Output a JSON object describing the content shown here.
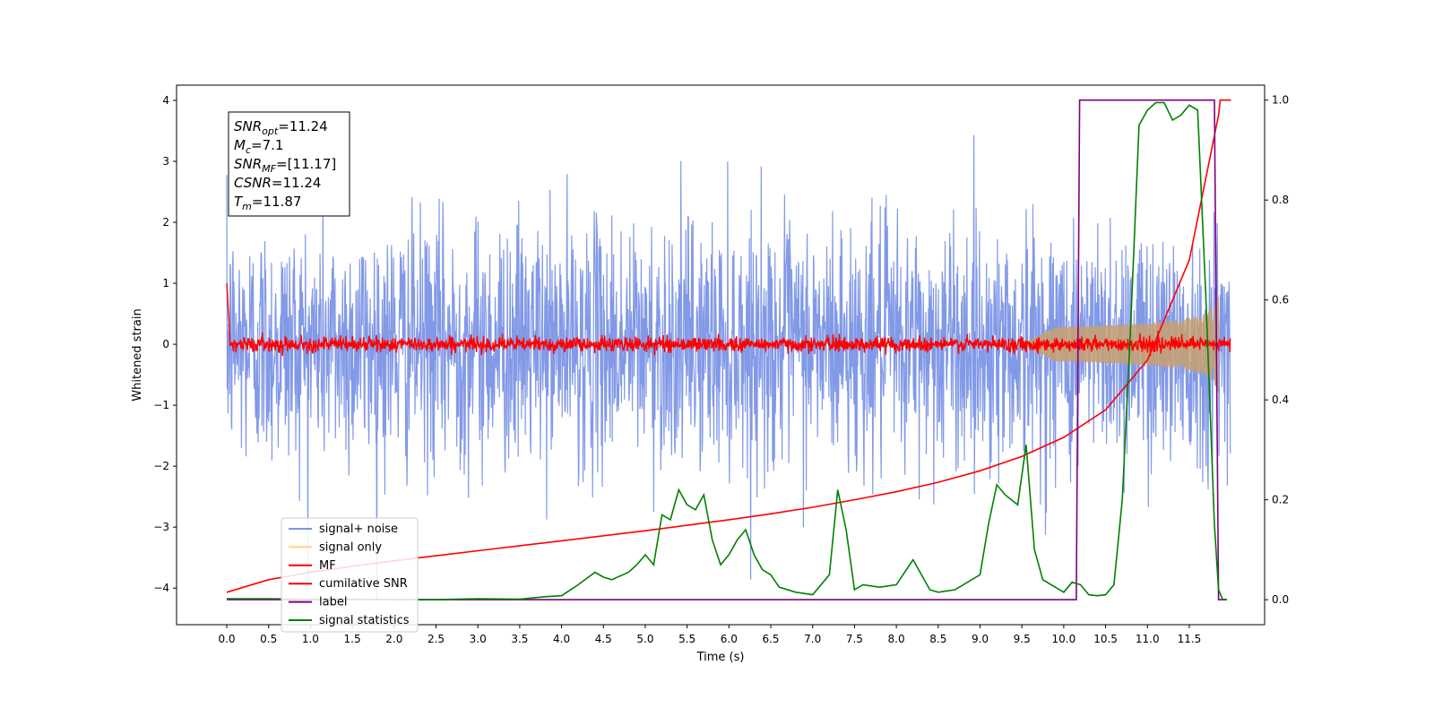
{
  "chart_data": {
    "type": "line",
    "xlabel": "Time (s)",
    "ylabel": "Whitened strain",
    "xlim": [
      -0.6,
      12.4
    ],
    "ylim": [
      -4.6,
      4.25
    ],
    "y2lim": [
      -0.05,
      1.03
    ],
    "x_ticks": [
      "0.0",
      "0.5",
      "1.0",
      "1.5",
      "2.0",
      "2.5",
      "3.0",
      "3.5",
      "4.0",
      "4.5",
      "5.0",
      "5.5",
      "6.0",
      "6.5",
      "7.0",
      "7.5",
      "8.0",
      "8.5",
      "9.0",
      "9.5",
      "10.0",
      "10.5",
      "11.0",
      "11.5"
    ],
    "y_ticks": [
      "4",
      "3",
      "2",
      "1",
      "0",
      "−1",
      "−2",
      "−3",
      "−4"
    ],
    "y2_ticks": [
      "1.0",
      "0.8",
      "0.6",
      "0.4",
      "0.2",
      "0.0"
    ],
    "annotation": {
      "lines": [
        {
          "var": "SNR",
          "sub": "opt",
          "value": "=11.24"
        },
        {
          "var": "M",
          "sub": "c",
          "value": "=7.1"
        },
        {
          "var": "SNR",
          "sub": "MF",
          "value": "=[11.17]"
        },
        {
          "var": "CSNR",
          "sub": "",
          "value": "=11.24"
        },
        {
          "var": "T",
          "sub": "m",
          "value": "=11.87"
        }
      ]
    },
    "legend": {
      "placement": "lower-left",
      "entries": [
        {
          "label": "signal+ noise",
          "color": "#7b93e6"
        },
        {
          "label": "signal only",
          "color": "#ffd27f"
        },
        {
          "label": "MF",
          "color": "#ff0000"
        },
        {
          "label": "cumilative SNR",
          "color": "#ff0000"
        },
        {
          "label": "label",
          "color": "#800080"
        },
        {
          "label": "signal statistics",
          "color": "#008000"
        }
      ]
    },
    "series": [
      {
        "name": "signal+ noise",
        "axis": "left",
        "kind": "noise",
        "x_range": [
          0,
          11.99
        ],
        "amplitude_sd": 1.0,
        "color": "#7b93e6"
      },
      {
        "name": "signal only",
        "axis": "left",
        "kind": "chirp",
        "x_range": [
          9.5,
          11.87
        ],
        "peak_amplitude": 0.9,
        "color": "#c8a070"
      },
      {
        "name": "MF",
        "axis": "left",
        "kind": "noise",
        "x_range": [
          0,
          11.99
        ],
        "amplitude_sd": 0.06,
        "color": "#ff0000"
      },
      {
        "name": "cumilative SNR",
        "axis": "right",
        "color": "#ff0000",
        "x": [
          0,
          0.5,
          1,
          1.5,
          2,
          2.5,
          3,
          3.5,
          4,
          4.5,
          5,
          5.5,
          6,
          6.5,
          7,
          7.5,
          8,
          8.5,
          9,
          9.5,
          10,
          10.5,
          11,
          11.5,
          11.85,
          11.87,
          12.0
        ],
        "values": [
          0.015,
          0.04,
          0.055,
          0.067,
          0.078,
          0.088,
          0.098,
          0.108,
          0.118,
          0.128,
          0.138,
          0.149,
          0.16,
          0.172,
          0.185,
          0.2,
          0.216,
          0.235,
          0.258,
          0.287,
          0.325,
          0.38,
          0.48,
          0.68,
          0.97,
          1.0,
          1.0
        ]
      },
      {
        "name": "label",
        "axis": "right",
        "color": "#800080",
        "x": [
          0,
          10.15,
          10.19,
          11.8,
          11.85,
          11.95
        ],
        "values": [
          0,
          0,
          1,
          1,
          0,
          0
        ]
      },
      {
        "name": "signal statistics",
        "axis": "right",
        "color": "#008000",
        "x": [
          0,
          0.5,
          1,
          1.5,
          2,
          2.5,
          3,
          3.5,
          3.8,
          4.0,
          4.2,
          4.4,
          4.5,
          4.6,
          4.8,
          4.9,
          5.0,
          5.1,
          5.2,
          5.3,
          5.4,
          5.5,
          5.6,
          5.7,
          5.8,
          5.9,
          6.0,
          6.1,
          6.2,
          6.3,
          6.4,
          6.5,
          6.6,
          6.8,
          7.0,
          7.2,
          7.3,
          7.4,
          7.5,
          7.6,
          7.8,
          8.0,
          8.2,
          8.3,
          8.4,
          8.5,
          8.7,
          9.0,
          9.1,
          9.2,
          9.3,
          9.45,
          9.55,
          9.65,
          9.75,
          9.9,
          10.0,
          10.1,
          10.2,
          10.3,
          10.4,
          10.5,
          10.6,
          10.7,
          10.8,
          10.9,
          11.0,
          11.1,
          11.2,
          11.3,
          11.4,
          11.5,
          11.6,
          11.7,
          11.8,
          11.85,
          11.9,
          11.95
        ],
        "values": [
          0.002,
          0.002,
          0.001,
          0.001,
          0.0,
          0.0,
          0.002,
          0.001,
          0.006,
          0.008,
          0.03,
          0.055,
          0.045,
          0.04,
          0.055,
          0.07,
          0.09,
          0.07,
          0.17,
          0.16,
          0.22,
          0.19,
          0.18,
          0.21,
          0.12,
          0.07,
          0.09,
          0.12,
          0.14,
          0.09,
          0.06,
          0.05,
          0.025,
          0.015,
          0.01,
          0.05,
          0.22,
          0.14,
          0.02,
          0.03,
          0.025,
          0.03,
          0.08,
          0.05,
          0.02,
          0.015,
          0.02,
          0.05,
          0.15,
          0.23,
          0.21,
          0.19,
          0.31,
          0.1,
          0.04,
          0.025,
          0.015,
          0.035,
          0.03,
          0.01,
          0.008,
          0.01,
          0.03,
          0.2,
          0.55,
          0.95,
          0.98,
          0.995,
          0.995,
          0.96,
          0.97,
          0.99,
          0.98,
          0.6,
          0.15,
          0.02,
          0.0,
          0.0
        ]
      }
    ]
  }
}
